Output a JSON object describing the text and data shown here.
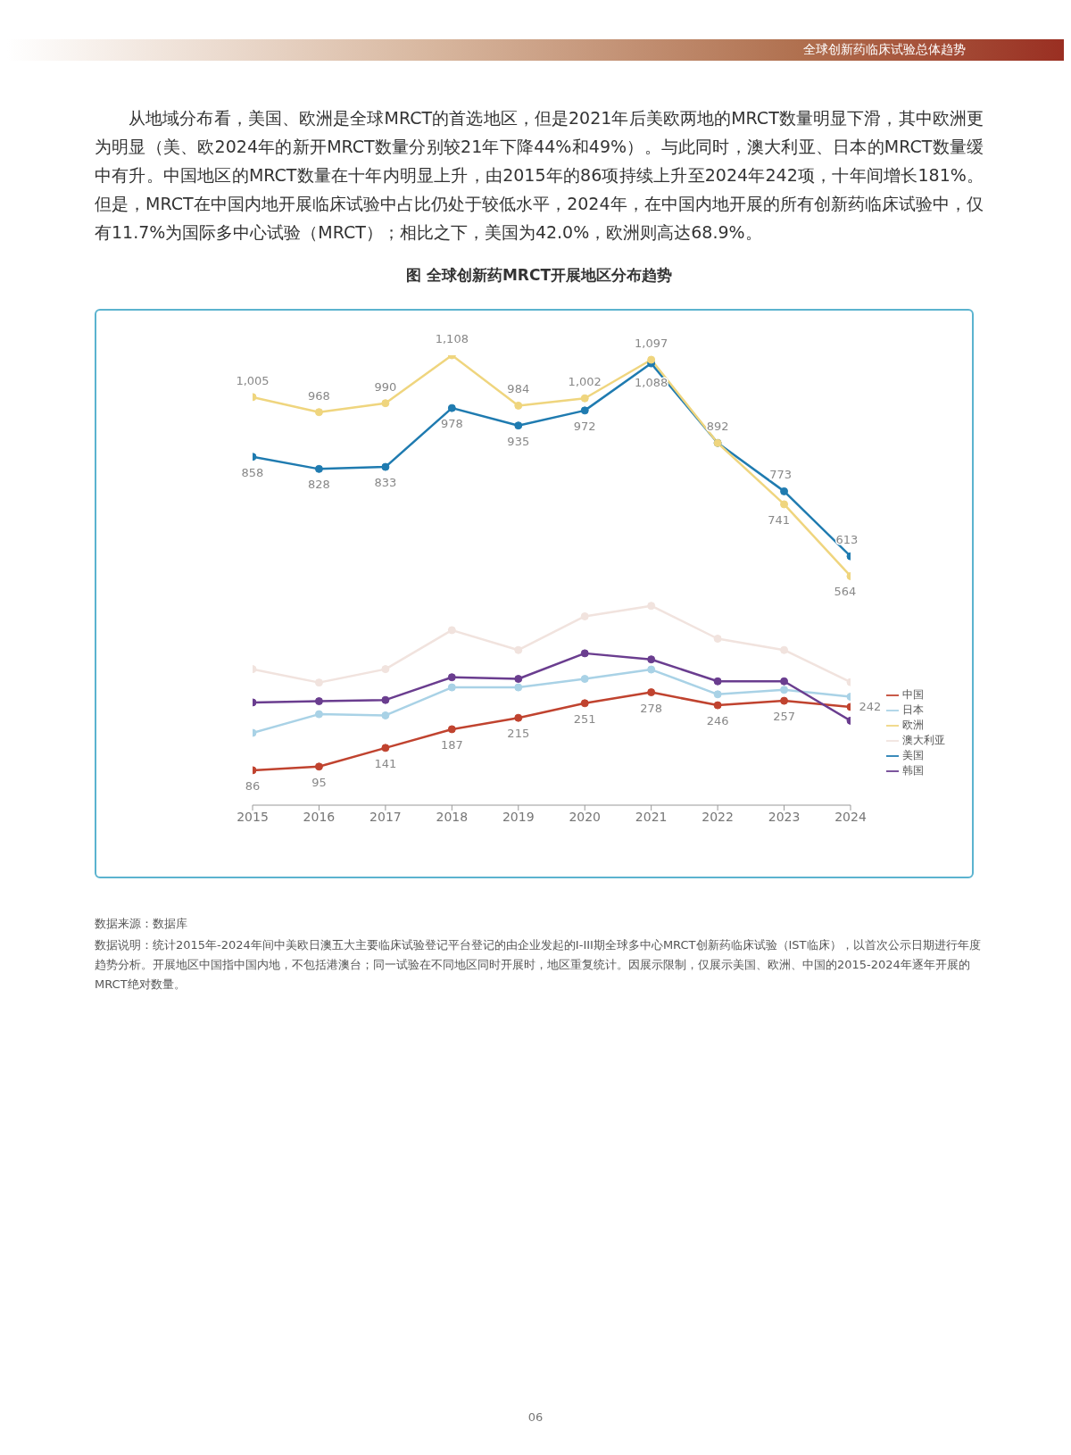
{
  "chart_data": {
    "type": "line",
    "title": "图 全球创新药MRCT开展地区分布趋势",
    "annotations": [
      "全球创新药临床试验总体趋势",
      "从地域分布看，美国、欧洲是全球MRCT的首选地区，但是2021年后美欧两地的MRCT数量明显下滑，其中欧洲更为明显（美、欧2024年的新开MRCT数量分别较21年下降44%和49%）。与此同时，澳大利亚、日本的MRCT数量缓中有升。中国地区的MRCT数量在十年内明显上升，由2015年的86项持续上升至2024年242项，十年间增长181%。但是，MRCT在中国内地开展临床试验中占比仍处于较低水平，2024年，在中国内地开展的所有创新药临床试验中，仅有11.7%为国际多中心试验（MRCT）；相比之下，美国为42.0%，欧洲则高达68.9%。",
      "数据来源：数据库",
      "数据说明：统计2015年-2024年间中美欧日澳五大主要临床试验登记平台登记的由企业发起的I-III期全球多中心MRCT创新药临床试验（IST临床），以首次公示日期进行年度趋势分析。开展地区中国指中国内地，不包括港澳台；同一试验在不同地区同时开展时，地区重复统计。因展示限制，仅展示美国、欧洲、中国的2015-2024年逐年开展的MRCT绝对数量。",
      "06"
    ],
    "categories": [
      "2015",
      "2016",
      "2017",
      "2018",
      "2019",
      "2020",
      "2021",
      "2022",
      "2023",
      "2024"
    ],
    "tick_labels": "x",
    "legend": "right",
    "marker": "circle",
    "line_style": "solid",
    "series": [
      {
        "name": "中国",
        "color": "#c0432f",
        "values": [
          86,
          95,
          141,
          187,
          215,
          251,
          278,
          246,
          257,
          242
        ],
        "value_labels": [
          "86",
          "95",
          "141",
          "187",
          "215",
          "251",
          "278",
          "246",
          "257",
          "242"
        ]
      },
      {
        "name": "美国",
        "color": "#1f7bb0",
        "values": [
          858,
          828,
          833,
          978,
          935,
          972,
          1088,
          892,
          773,
          613
        ],
        "value_labels": [
          "858",
          "828",
          "833",
          "978",
          "935",
          "972",
          "1,088",
          null,
          "773",
          "613"
        ]
      },
      {
        "name": "欧洲",
        "color": "#efd57e",
        "values": [
          1005,
          968,
          990,
          1108,
          984,
          1002,
          1097,
          892,
          741,
          564
        ],
        "value_labels": [
          "1,005",
          "968",
          "990",
          "1,108",
          "984",
          "1,002",
          "1,097",
          "892",
          "741",
          "564"
        ]
      },
      {
        "name": "澳大利亚",
        "color": "#f1e3de",
        "values": [
          335,
          302,
          335,
          431,
          382,
          465,
          491,
          410,
          382,
          303
        ]
      },
      {
        "name": "日本",
        "color": "#a9d2e6",
        "values": [
          178,
          224,
          221,
          290,
          290,
          311,
          334,
          273,
          284,
          267
        ]
      },
      {
        "name": "韩国",
        "color": "#6a3d8f",
        "values": [
          253,
          256,
          259,
          315,
          311,
          374,
          359,
          305,
          305,
          208
        ]
      }
    ]
  }
}
